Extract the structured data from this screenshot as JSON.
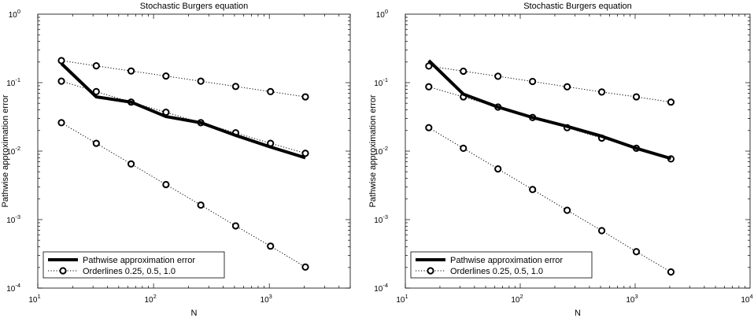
{
  "chart_data": [
    {
      "type": "line",
      "title": "Stochastic Burgers equation",
      "xlabel": "N",
      "ylabel": "Pathwise approximation error",
      "xscale": "log",
      "yscale": "log",
      "xlim": [
        10,
        5000
      ],
      "ylim": [
        0.0001,
        1
      ],
      "grid": false,
      "legend_position": "bottom-left",
      "x_ticks": [
        {
          "base": "10",
          "exp": "1"
        },
        {
          "base": "10",
          "exp": "2"
        },
        {
          "base": "10",
          "exp": "3"
        }
      ],
      "y_ticks": [
        {
          "base": "10",
          "exp": "0"
        },
        {
          "base": "10",
          "exp": "-1"
        },
        {
          "base": "10",
          "exp": "-2"
        },
        {
          "base": "10",
          "exp": "-3"
        },
        {
          "base": "10",
          "exp": "-4"
        }
      ],
      "series": [
        {
          "name": "Pathwise approximation error",
          "style": "thick-solid",
          "x": [
            16,
            32,
            64,
            128,
            256,
            512,
            1024,
            2048
          ],
          "y": [
            0.19,
            0.062,
            0.052,
            0.032,
            0.026,
            0.017,
            0.0115,
            0.008
          ]
        },
        {
          "name": "Orderlines 0.25, 0.5, 1.0",
          "style": "dotted-circle",
          "x": [
            16,
            32,
            64,
            128,
            256,
            512,
            1024,
            2048
          ],
          "y": [
            0.21,
            0.176,
            0.148,
            0.125,
            0.105,
            0.088,
            0.074,
            0.062
          ]
        },
        {
          "name": "",
          "style": "dotted-circle",
          "x": [
            16,
            32,
            64,
            128,
            256,
            512,
            1024,
            2048
          ],
          "y": [
            0.105,
            0.074,
            0.052,
            0.037,
            0.026,
            0.0185,
            0.013,
            0.0093
          ]
        },
        {
          "name": "",
          "style": "dotted-circle",
          "x": [
            16,
            32,
            64,
            128,
            256,
            512,
            1024,
            2048
          ],
          "y": [
            0.026,
            0.013,
            0.0065,
            0.00325,
            0.00163,
            0.00081,
            0.00041,
            0.000203
          ]
        }
      ]
    },
    {
      "type": "line",
      "title": "Stochastic Burgers equation",
      "xlabel": "N",
      "ylabel": "Pathwise approximation error",
      "xscale": "log",
      "yscale": "log",
      "xlim": [
        10,
        10000
      ],
      "ylim": [
        0.0001,
        1
      ],
      "grid": false,
      "legend_position": "bottom-left",
      "x_ticks": [
        {
          "base": "10",
          "exp": "1"
        },
        {
          "base": "10",
          "exp": "2"
        },
        {
          "base": "10",
          "exp": "3"
        },
        {
          "base": "10",
          "exp": "4"
        }
      ],
      "y_ticks": [
        {
          "base": "10",
          "exp": "0"
        },
        {
          "base": "10",
          "exp": "-1"
        },
        {
          "base": "10",
          "exp": "-2"
        },
        {
          "base": "10",
          "exp": "-3"
        },
        {
          "base": "10",
          "exp": "-4"
        }
      ],
      "series": [
        {
          "name": "Pathwise approximation error",
          "style": "thick-solid",
          "x": [
            16,
            32,
            64,
            128,
            256,
            512,
            1024,
            2048
          ],
          "y": [
            0.21,
            0.068,
            0.044,
            0.031,
            0.023,
            0.0165,
            0.011,
            0.0078
          ]
        },
        {
          "name": "Orderlines 0.25, 0.5, 1.0",
          "style": "dotted-circle",
          "x": [
            16,
            32,
            64,
            128,
            256,
            512,
            1024,
            2048
          ],
          "y": [
            0.175,
            0.147,
            0.124,
            0.104,
            0.087,
            0.073,
            0.062,
            0.052
          ]
        },
        {
          "name": "",
          "style": "dotted-circle",
          "x": [
            16,
            32,
            64,
            128,
            256,
            512,
            1024,
            2048
          ],
          "y": [
            0.087,
            0.062,
            0.044,
            0.031,
            0.022,
            0.0155,
            0.011,
            0.0077
          ]
        },
        {
          "name": "",
          "style": "dotted-circle",
          "x": [
            16,
            32,
            64,
            128,
            256,
            512,
            1024,
            2048
          ],
          "y": [
            0.022,
            0.011,
            0.0055,
            0.00275,
            0.00137,
            0.00069,
            0.00034,
            0.000172
          ]
        }
      ]
    }
  ]
}
